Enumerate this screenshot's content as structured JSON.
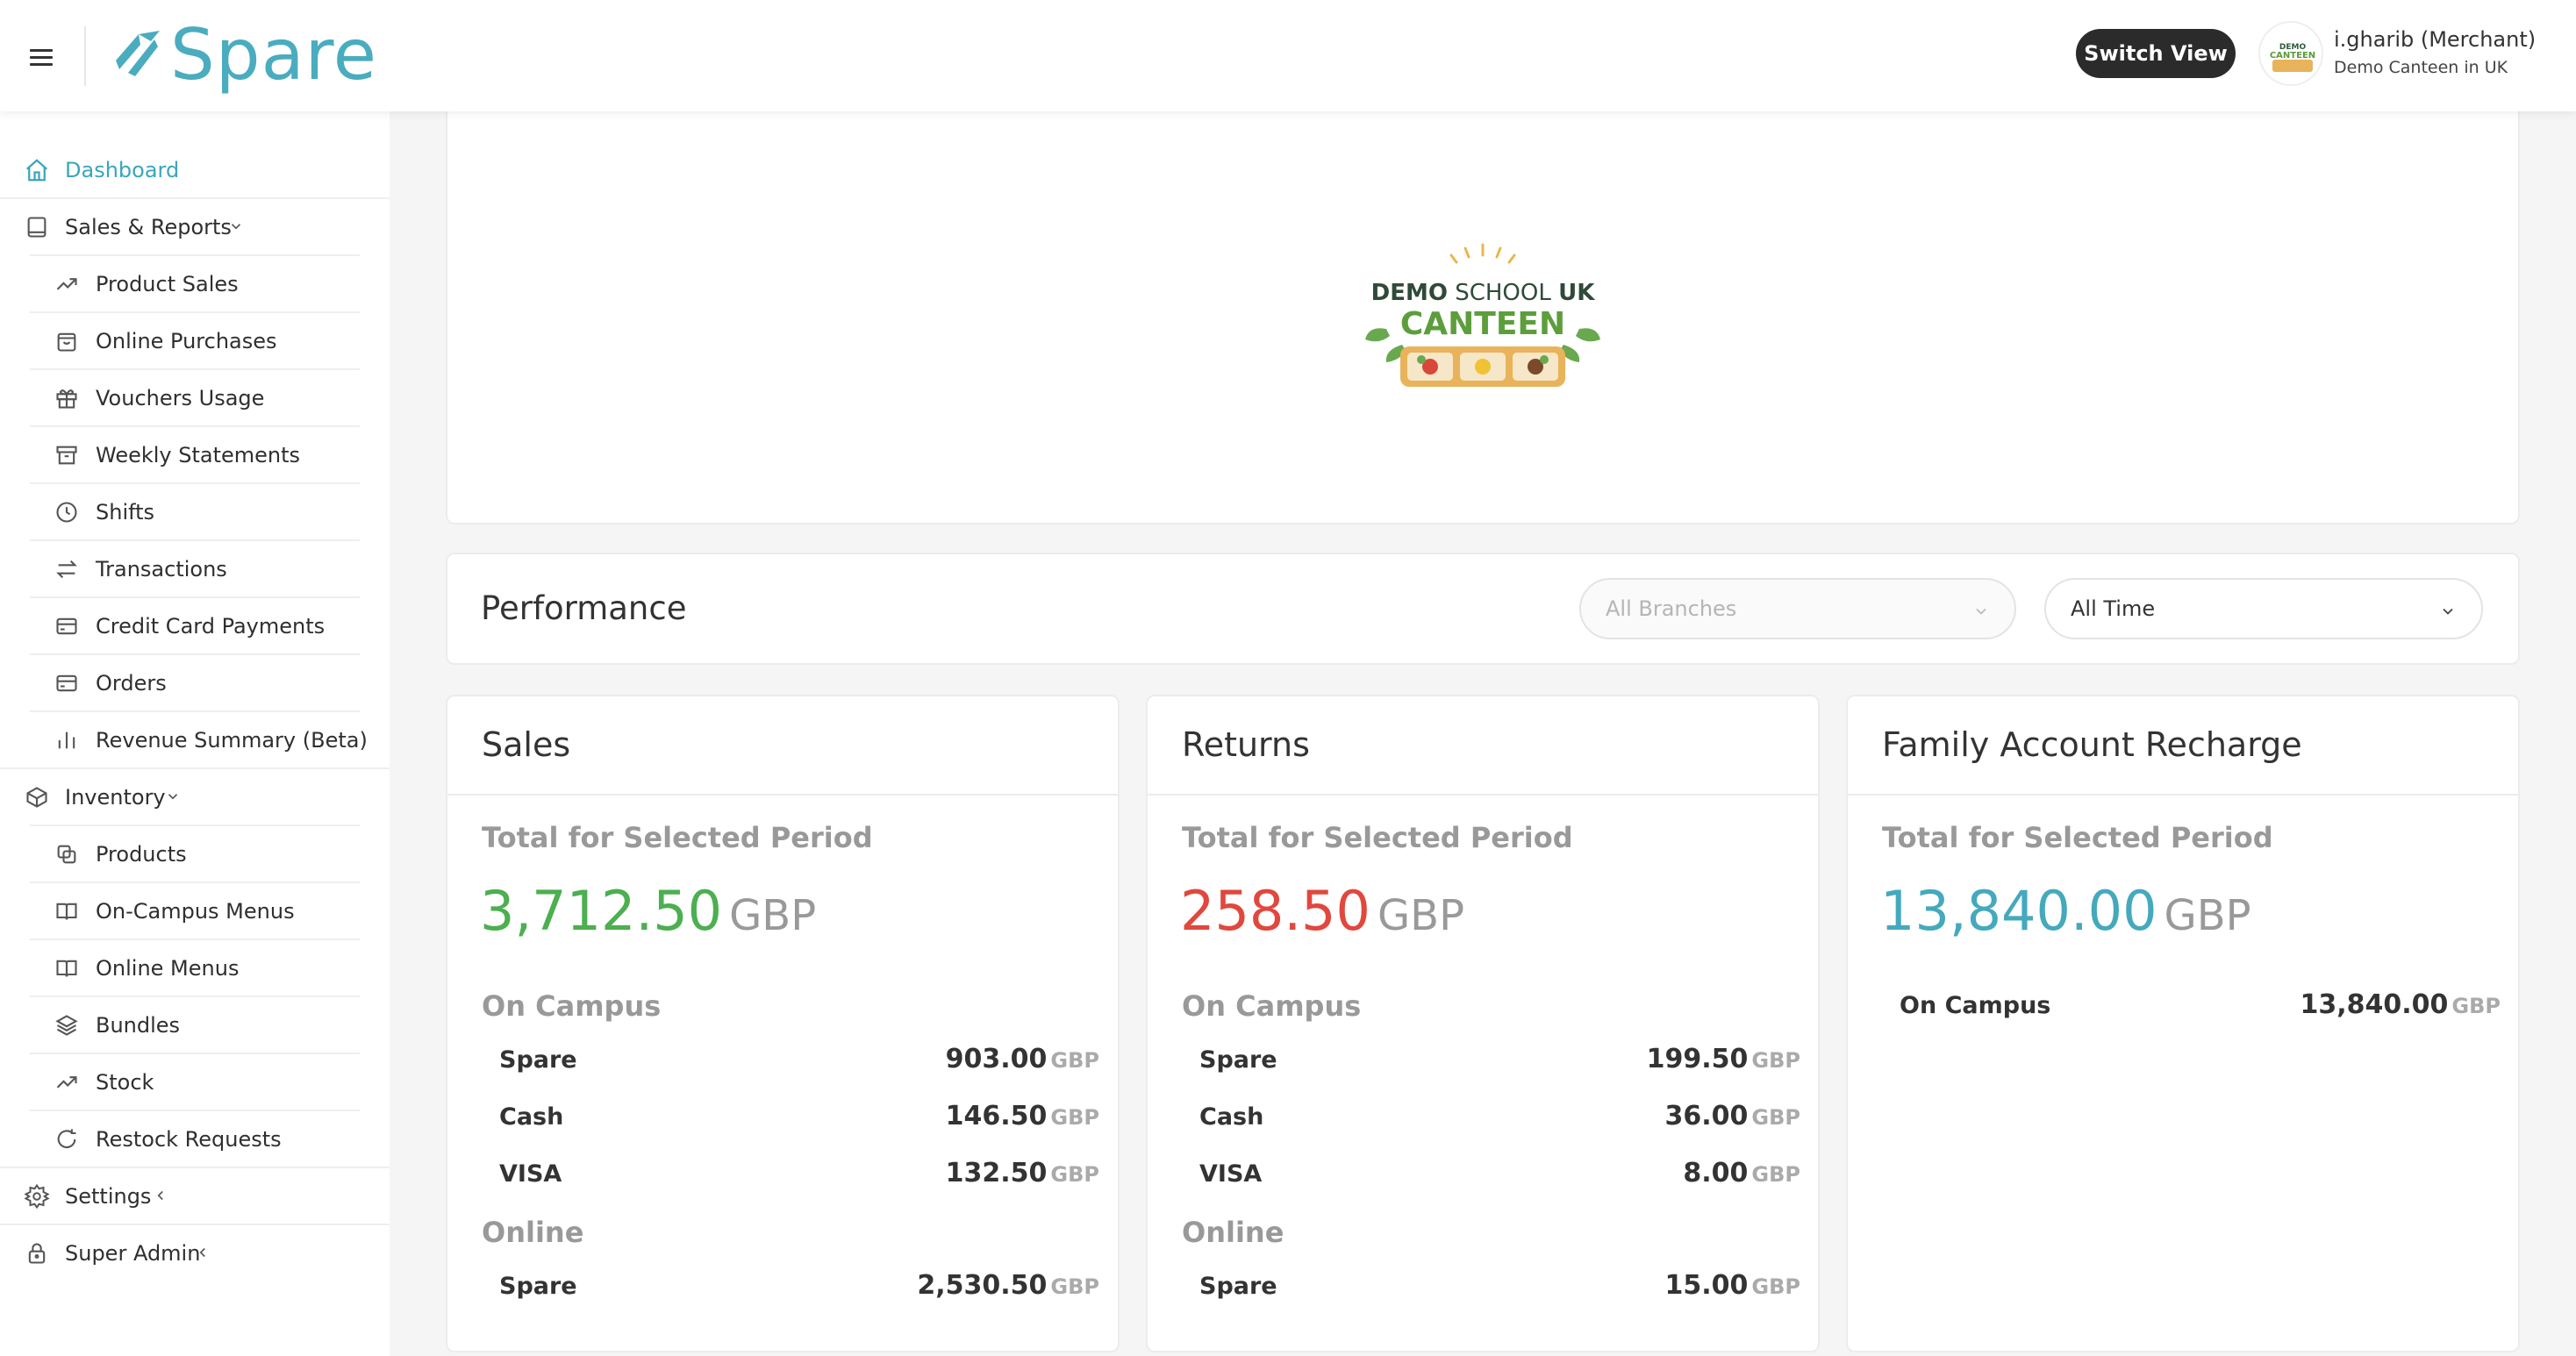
{
  "header": {
    "brand": "Spare",
    "switch_view": "Switch View",
    "user_name": "i.gharib (Merchant)",
    "user_sub": "Demo Canteen in UK"
  },
  "sidebar": {
    "items": [
      {
        "label": "Dashboard",
        "icon": "home-icon"
      },
      {
        "label": "Sales & Reports",
        "icon": "book-icon"
      },
      {
        "label": "Product Sales",
        "icon": "trending-up-icon"
      },
      {
        "label": "Online Purchases",
        "icon": "shopping-bag-icon"
      },
      {
        "label": "Vouchers Usage",
        "icon": "gift-icon"
      },
      {
        "label": "Weekly Statements",
        "icon": "archive-icon"
      },
      {
        "label": "Shifts",
        "icon": "clock-icon"
      },
      {
        "label": "Transactions",
        "icon": "arrows-swap-icon"
      },
      {
        "label": "Credit Card Payments",
        "icon": "credit-card-icon"
      },
      {
        "label": "Orders",
        "icon": "credit-card-icon"
      },
      {
        "label": "Revenue Summary (Beta)",
        "icon": "bar-chart-icon"
      },
      {
        "label": "Inventory",
        "icon": "box-icon"
      },
      {
        "label": "Products",
        "icon": "copy-icon"
      },
      {
        "label": "On-Campus Menus",
        "icon": "open-book-icon"
      },
      {
        "label": "Online Menus",
        "icon": "open-book-icon"
      },
      {
        "label": "Bundles",
        "icon": "layers-icon"
      },
      {
        "label": "Stock",
        "icon": "trending-up-icon"
      },
      {
        "label": "Restock Requests",
        "icon": "refresh-icon"
      },
      {
        "label": "Settings",
        "icon": "gear-icon"
      },
      {
        "label": "Super Admin",
        "icon": "lock-icon"
      }
    ]
  },
  "banner": {
    "logo_line1_a": "DEMO",
    "logo_line1_b": "SCHOOL",
    "logo_line1_c": "UK",
    "logo_line2": "CANTEEN"
  },
  "performance": {
    "title": "Performance",
    "branches_placeholder": "All Branches",
    "period": "All Time"
  },
  "cards": {
    "sales": {
      "title": "Sales",
      "total_label": "Total for Selected Period",
      "total": "3,712.50",
      "currency": "GBP",
      "on_campus_label": "On Campus",
      "online_label": "Online",
      "rows": [
        {
          "label": "Spare",
          "value": "903.00",
          "cur": "GBP"
        },
        {
          "label": "Cash",
          "value": "146.50",
          "cur": "GBP"
        },
        {
          "label": "VISA",
          "value": "132.50",
          "cur": "GBP"
        },
        {
          "label": "Spare",
          "value": "2,530.50",
          "cur": "GBP"
        }
      ]
    },
    "returns": {
      "title": "Returns",
      "total_label": "Total for Selected Period",
      "total": "258.50",
      "currency": "GBP",
      "on_campus_label": "On Campus",
      "online_label": "Online",
      "rows": [
        {
          "label": "Spare",
          "value": "199.50",
          "cur": "GBP"
        },
        {
          "label": "Cash",
          "value": "36.00",
          "cur": "GBP"
        },
        {
          "label": "VISA",
          "value": "8.00",
          "cur": "GBP"
        },
        {
          "label": "Spare",
          "value": "15.00",
          "cur": "GBP"
        }
      ]
    },
    "recharge": {
      "title": "Family Account Recharge",
      "total_label": "Total for Selected Period",
      "total": "13,840.00",
      "currency": "GBP",
      "rows": [
        {
          "label": "On Campus",
          "value": "13,840.00",
          "cur": "GBP"
        }
      ]
    }
  },
  "colors": {
    "accent": "#3aa6bb",
    "sales_total": "#4caf50",
    "returns_total": "#e0483e",
    "recharge_total": "#45a9bd"
  }
}
